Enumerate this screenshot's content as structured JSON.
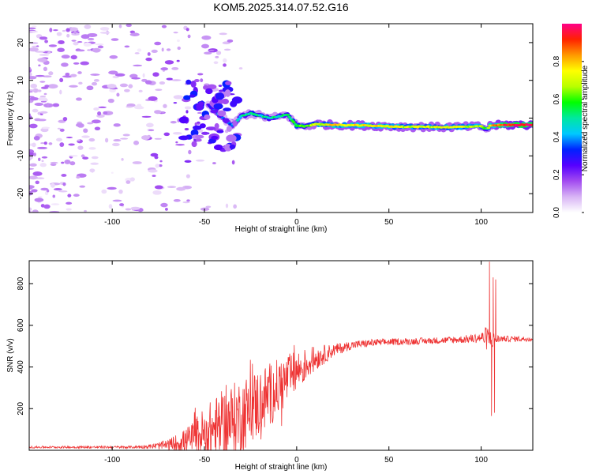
{
  "title": "KOM5.2025.314.07.52.G16",
  "chart_data": [
    {
      "type": "heatmap",
      "name": "spectrogram",
      "xlabel": "Height of straight line (km)",
      "ylabel": "Frequency (Hz)",
      "xlim": [
        -145,
        128
      ],
      "ylim": [
        -25,
        25
      ],
      "xticks": [
        -100,
        -50,
        0,
        50,
        100
      ],
      "xtick_labels": [
        "-100",
        "-50",
        "0",
        "50",
        "100"
      ],
      "yticks": [
        -20,
        -10,
        0,
        10,
        20
      ],
      "ytick_labels": [
        "-20",
        "-10",
        "0",
        "10",
        "20"
      ],
      "colorbar": {
        "label": "Normalized spectral amplitude",
        "range": [
          0,
          1
        ],
        "ticks": [
          0.0,
          0.2,
          0.4,
          0.6,
          0.8
        ],
        "tick_labels": [
          "0.0",
          "0.2",
          "0.4",
          "0.6",
          "0.8"
        ],
        "stops": [
          "#ffffff",
          "#d8b4f5",
          "#a24bf0",
          "#5500ff",
          "#0022ff",
          "#00c8ff",
          "#00e8a0",
          "#00ff00",
          "#b8ff00",
          "#ffff00",
          "#ff9900",
          "#ff2200",
          "#ff0088"
        ]
      },
      "ridge": {
        "x": [
          -48,
          -40,
          -35,
          -30,
          -25,
          -20,
          -15,
          -10,
          -5,
          0,
          5,
          10,
          20,
          30,
          40,
          50,
          60,
          70,
          80,
          90,
          100,
          103,
          105,
          108,
          115,
          128
        ],
        "freq": [
          3.5,
          0,
          -2,
          0.5,
          1.3,
          0.7,
          0,
          0.4,
          0.9,
          -2,
          -2.2,
          -1.6,
          -1.8,
          -1.9,
          -2.0,
          -2.2,
          -2.3,
          -2.3,
          -2.4,
          -2.3,
          -2.2,
          -3.0,
          -2.0,
          -1.9,
          -1.8,
          -1.8
        ],
        "amplitude": [
          0.3,
          0.35,
          0.4,
          0.45,
          0.5,
          0.5,
          0.5,
          0.5,
          0.5,
          0.55,
          0.6,
          0.7,
          0.75,
          0.75,
          0.75,
          0.72,
          0.7,
          0.7,
          0.7,
          0.7,
          0.7,
          0.5,
          0.75,
          0.85,
          0.95,
          1.0
        ]
      },
      "noise_region_x": [
        -145,
        -30
      ],
      "noise_amplitude_range": [
        0.02,
        0.3
      ]
    },
    {
      "type": "line",
      "name": "snr",
      "xlabel": "Height of straight line (km)",
      "ylabel": "SNR (v/v)",
      "xlim": [
        -145,
        128
      ],
      "ylim": [
        0,
        910
      ],
      "xticks": [
        -100,
        -50,
        0,
        50,
        100
      ],
      "xtick_labels": [
        "-100",
        "-50",
        "0",
        "50",
        "100"
      ],
      "yticks": [
        200,
        400,
        600,
        800
      ],
      "ytick_labels": [
        "200",
        "400",
        "600",
        "800"
      ],
      "color": "#ee3333",
      "envelope": {
        "x": [
          -145,
          -90,
          -80,
          -70,
          -60,
          -50,
          -40,
          -30,
          -20,
          -10,
          0,
          10,
          20,
          30,
          40,
          50,
          60,
          70,
          80,
          90,
          100,
          103,
          106,
          110,
          128
        ],
        "baseline": [
          15,
          15,
          18,
          25,
          45,
          80,
          120,
          170,
          230,
          300,
          380,
          440,
          480,
          505,
          515,
          520,
          522,
          525,
          528,
          532,
          540,
          540,
          530,
          535,
          535
        ],
        "amplitude": [
          5,
          6,
          10,
          25,
          60,
          130,
          170,
          180,
          170,
          140,
          100,
          60,
          30,
          20,
          18,
          16,
          16,
          16,
          16,
          18,
          25,
          60,
          40,
          15,
          12
        ]
      },
      "spikes": [
        {
          "x": 104.5,
          "y": 905
        },
        {
          "x": 105.6,
          "y": 165
        },
        {
          "x": 106.5,
          "y": 830
        },
        {
          "x": 107.3,
          "y": 180
        },
        {
          "x": 107.9,
          "y": 820
        },
        {
          "x": 108.6,
          "y": 520
        }
      ]
    }
  ]
}
